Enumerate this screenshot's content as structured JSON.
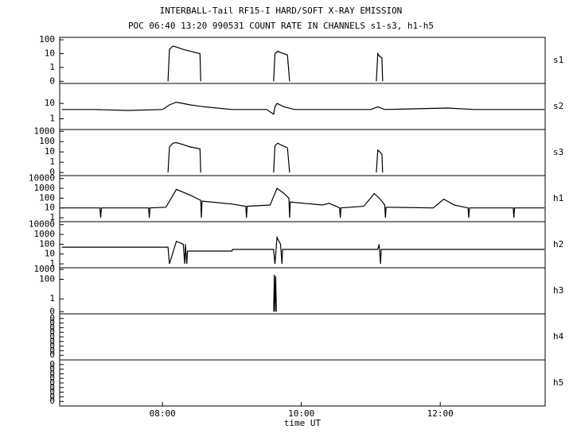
{
  "header": {
    "title": "INTERBALL-Tail RF15-I HARD/SOFT X-RAY EMISSION",
    "subtitle": "POC 06:40 13:20 990531  COUNT RATE IN CHANNELS s1-s3, h1-h5"
  },
  "chart_data": [
    {
      "type": "line",
      "label": "s1",
      "log_y": true,
      "xlim": [
        6.52,
        13.51
      ],
      "ylim": [
        0.07,
        150
      ],
      "yticks": [
        {
          "value": 0.1,
          "label": "0"
        },
        1,
        10,
        100
      ],
      "x": [
        8.08,
        8.1,
        8.15,
        8.2,
        8.3,
        8.4,
        8.54,
        8.55,
        9.0,
        9.6,
        9.62,
        9.66,
        9.7,
        9.8,
        9.83,
        10.5,
        11.08,
        11.1,
        11.13,
        11.16,
        11.17
      ],
      "series": [
        {
          "color": "#000000",
          "values": [
            0.1,
            20,
            35,
            30,
            20,
            15,
            10,
            0.1,
            null,
            0.1,
            10,
            15,
            12,
            8,
            0.1,
            null,
            0.1,
            10,
            6,
            5,
            0.1
          ]
        }
      ]
    },
    {
      "type": "line",
      "label": "s2",
      "log_y": true,
      "xlim": [
        6.52,
        13.51
      ],
      "ylim": [
        0.2,
        200
      ],
      "yticks": [
        1,
        10
      ],
      "x": [
        6.55,
        7.0,
        7.5,
        8.0,
        8.1,
        8.2,
        8.4,
        8.6,
        9.0,
        9.5,
        9.6,
        9.62,
        9.65,
        9.75,
        9.9,
        10.5,
        11.0,
        11.1,
        11.2,
        12.1,
        12.5,
        13.0,
        13.5
      ],
      "series": [
        {
          "color": "#000000",
          "values": [
            4,
            4,
            3.5,
            4,
            8,
            12,
            8,
            6,
            4,
            4,
            2,
            6,
            10,
            6,
            4,
            4,
            4,
            6,
            4,
            5,
            4,
            4,
            4
          ]
        }
      ]
    },
    {
      "type": "line",
      "label": "s3",
      "log_y": true,
      "xlim": [
        6.52,
        13.51
      ],
      "ylim": [
        0.05,
        1500
      ],
      "yticks": [
        {
          "value": 0.1,
          "label": "0"
        },
        1,
        10,
        100,
        1000
      ],
      "x": [
        8.08,
        8.1,
        8.15,
        8.2,
        8.3,
        8.4,
        8.54,
        8.55,
        9.0,
        9.6,
        9.62,
        9.66,
        9.7,
        9.8,
        9.83,
        10.5,
        11.08,
        11.1,
        11.13,
        11.16,
        11.17
      ],
      "series": [
        {
          "color": "#000000",
          "values": [
            0.1,
            30,
            70,
            80,
            50,
            30,
            20,
            0.1,
            null,
            0.1,
            40,
            70,
            50,
            25,
            0.1,
            null,
            0.1,
            15,
            10,
            6,
            0.1
          ]
        }
      ]
    },
    {
      "type": "line",
      "label": "h1",
      "log_y": true,
      "xlim": [
        6.52,
        13.51
      ],
      "ylim": [
        0.4,
        20000
      ],
      "yticks": [
        1,
        10,
        100,
        1000,
        10000
      ],
      "x": [
        6.55,
        7.1,
        7.11,
        7.12,
        7.8,
        7.81,
        7.82,
        8.05,
        8.2,
        8.4,
        8.55,
        8.56,
        8.57,
        9.0,
        9.2,
        9.21,
        9.22,
        9.55,
        9.65,
        9.75,
        9.82,
        9.83,
        9.84,
        10.3,
        10.4,
        10.5,
        10.55,
        10.56,
        10.57,
        10.9,
        11.05,
        11.15,
        11.2,
        11.21,
        11.22,
        11.9,
        11.95,
        12.05,
        12.2,
        12.4,
        12.41,
        12.42,
        13.05,
        13.06,
        13.07,
        13.5
      ],
      "series": [
        {
          "color": "#000000",
          "values": [
            10,
            10,
            1,
            10,
            10,
            1,
            10,
            12,
            800,
            200,
            60,
            1,
            50,
            25,
            15,
            1,
            15,
            20,
            1000,
            300,
            100,
            1,
            40,
            20,
            30,
            15,
            10,
            1,
            10,
            15,
            300,
            60,
            20,
            1,
            12,
            10,
            20,
            80,
            20,
            10,
            1,
            10,
            10,
            1,
            10,
            10
          ]
        }
      ]
    },
    {
      "type": "line",
      "label": "h2",
      "log_y": true,
      "xlim": [
        6.52,
        13.51
      ],
      "ylim": [
        0.4,
        20000
      ],
      "yticks": [
        1,
        10,
        100,
        1000,
        10000
      ],
      "x": [
        6.55,
        8.08,
        8.1,
        8.2,
        8.3,
        8.32,
        8.33,
        8.35,
        8.36,
        9.0,
        9.01,
        9.6,
        9.62,
        9.65,
        9.7,
        9.72,
        9.73,
        11.1,
        11.12,
        11.14,
        11.15,
        13.5
      ],
      "series": [
        {
          "color": "#000000",
          "values": [
            50,
            50,
            1,
            200,
            100,
            1,
            100,
            1,
            20,
            20,
            30,
            30,
            1,
            500,
            100,
            1,
            30,
            30,
            100,
            1,
            30,
            30
          ]
        }
      ]
    },
    {
      "type": "line",
      "label": "h3",
      "log_y": true,
      "xlim": [
        6.52,
        13.51
      ],
      "ylim": [
        0.03,
        1500
      ],
      "yticks": [
        {
          "value": 0.05,
          "label": "0"
        },
        1,
        100,
        1000
      ],
      "x": [
        9.6,
        9.61,
        9.62,
        9.63,
        9.64
      ],
      "series": [
        {
          "color": "#000000",
          "values": [
            0.05,
            300,
            0.05,
            200,
            0.05
          ]
        }
      ]
    },
    {
      "type": "line",
      "label": "h4",
      "log_y": false,
      "xlim": [
        6.52,
        13.51
      ],
      "ylim": [
        0,
        1
      ],
      "yticks": [
        {
          "value": 0.1,
          "label": "0"
        },
        {
          "value": 0.2,
          "label": "0"
        },
        {
          "value": 0.3,
          "label": "0"
        },
        {
          "value": 0.4,
          "label": "0"
        },
        {
          "value": 0.5,
          "label": "0"
        },
        {
          "value": 0.6,
          "label": "0"
        },
        {
          "value": 0.7,
          "label": "0"
        },
        {
          "value": 0.8,
          "label": "0"
        },
        {
          "value": 0.9,
          "label": "0"
        }
      ]
    },
    {
      "type": "line",
      "label": "h5",
      "log_y": false,
      "xlim": [
        6.52,
        13.51
      ],
      "ylim": [
        0,
        1
      ],
      "yticks": [
        {
          "value": 0.1,
          "label": "0"
        },
        {
          "value": 0.2,
          "label": "0"
        },
        {
          "value": 0.3,
          "label": "0"
        },
        {
          "value": 0.4,
          "label": "0"
        },
        {
          "value": 0.5,
          "label": "0"
        },
        {
          "value": 0.6,
          "label": "0"
        },
        {
          "value": 0.7,
          "label": "0"
        },
        {
          "value": 0.8,
          "label": "0"
        },
        {
          "value": 0.9,
          "label": "0"
        }
      ],
      "xticks": [
        {
          "value": 8,
          "label": "08:00"
        },
        {
          "value": 10,
          "label": "10:00"
        },
        {
          "value": 12,
          "label": "12:00"
        }
      ],
      "xlabel": "time UT"
    }
  ]
}
